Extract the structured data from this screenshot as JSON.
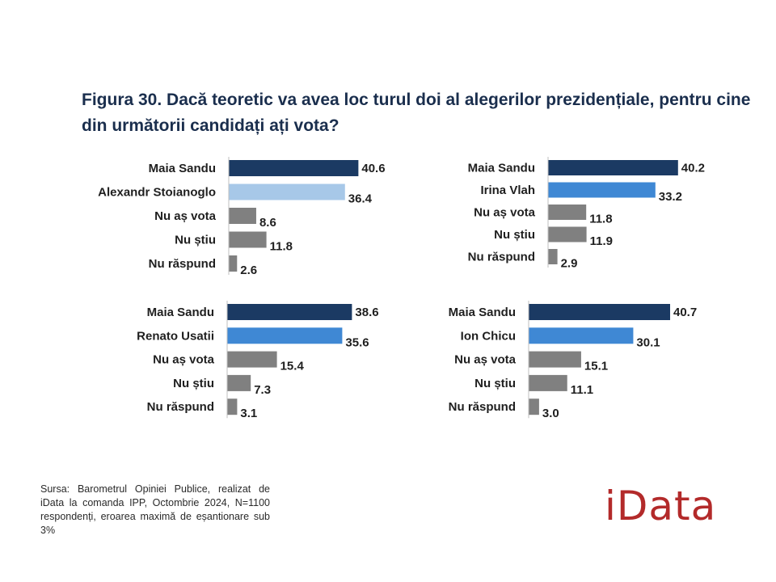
{
  "title": "Figura 30. Dacă teoretic va avea loc turul doi al alegerilor prezidențiale, pentru cine din următorii candidați ați vota?",
  "source": "Sursa: Barometrul Opiniei Publice, realizat de iData la comanda IPP, Octombrie 2024, N=1100 respondenți, eroarea maximă de eșantionare sub 3%",
  "logo": "iData",
  "colors": {
    "sandu": "#1b3a63",
    "opponent": "#3f88d4",
    "opponent_light": "#a7c8e8",
    "other": "#808080"
  },
  "chart_data": [
    {
      "type": "bar",
      "orientation": "horizontal",
      "categories": [
        "Maia Sandu",
        "Alexandr Stoianoglo",
        "Nu aș vota",
        "Nu știu",
        "Nu răspund"
      ],
      "values": [
        40.6,
        36.4,
        8.6,
        11.8,
        2.6
      ],
      "colors": [
        "#1b3a63",
        "#a7c8e8",
        "#808080",
        "#808080",
        "#808080"
      ],
      "unit": "%",
      "xlim": [
        0,
        45
      ]
    },
    {
      "type": "bar",
      "orientation": "horizontal",
      "categories": [
        "Maia Sandu",
        "Irina Vlah",
        "Nu aș vota",
        "Nu știu",
        "Nu răspund"
      ],
      "values": [
        40.2,
        33.2,
        11.8,
        11.9,
        2.9
      ],
      "colors": [
        "#1b3a63",
        "#3f88d4",
        "#808080",
        "#808080",
        "#808080"
      ],
      "unit": "%",
      "xlim": [
        0,
        45
      ]
    },
    {
      "type": "bar",
      "orientation": "horizontal",
      "categories": [
        "Maia Sandu",
        "Renato Usatii",
        "Nu aș vota",
        "Nu știu",
        "Nu răspund"
      ],
      "values": [
        38.6,
        35.6,
        15.4,
        7.3,
        3.1
      ],
      "colors": [
        "#1b3a63",
        "#3f88d4",
        "#808080",
        "#808080",
        "#808080"
      ],
      "unit": "%",
      "xlim": [
        0,
        45
      ]
    },
    {
      "type": "bar",
      "orientation": "horizontal",
      "categories": [
        "Maia Sandu",
        "Ion Chicu",
        "Nu aș vota",
        "Nu știu",
        "Nu răspund"
      ],
      "values": [
        40.7,
        30.1,
        15.1,
        11.1,
        3.0
      ],
      "colors": [
        "#1b3a63",
        "#3f88d4",
        "#808080",
        "#808080",
        "#808080"
      ],
      "unit": "%",
      "xlim": [
        0,
        45
      ]
    }
  ]
}
